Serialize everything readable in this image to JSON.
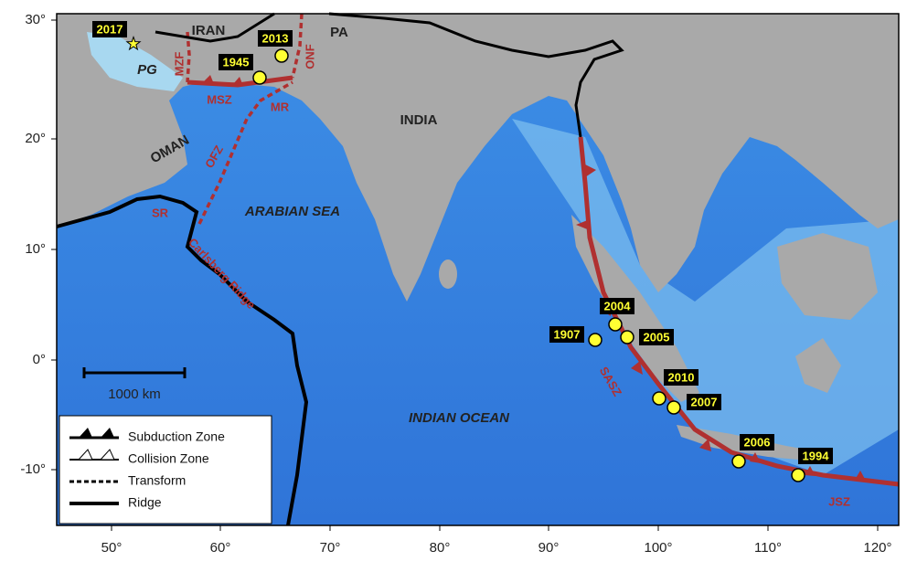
{
  "map": {
    "x_tick_labels": [
      "50°",
      "60°",
      "70°",
      "80°",
      "90°",
      "100°",
      "110°",
      "120°"
    ],
    "y_tick_labels": [
      "30°",
      "20°",
      "10°",
      "0°",
      "-10°"
    ],
    "region_labels": [
      "IRAN",
      "PA",
      "PG",
      "OMAN",
      "INDIA",
      "ARABIAN SEA",
      "INDIAN OCEAN"
    ],
    "feature_labels": [
      "MZF",
      "ONF",
      "MSZ",
      "MR",
      "OFZ",
      "SR",
      "Carlsberg Ridge",
      "SASZ",
      "JSZ"
    ],
    "events": [
      "2017",
      "1945",
      "2013",
      "1907",
      "2004",
      "2005",
      "2010",
      "2007",
      "2006",
      "1994"
    ],
    "scale_bar": "1000 km",
    "legend": [
      "Subduction Zone",
      "Collision Zone",
      "Transform",
      "Ridge"
    ]
  }
}
